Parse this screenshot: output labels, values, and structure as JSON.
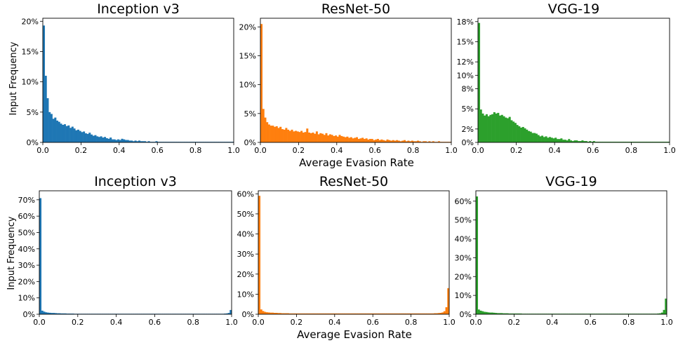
{
  "figure": {
    "shared_xlabel_top": "Average Evasion Rate",
    "shared_xlabel_bottom": "Average Evasion Rate",
    "ylabel_top": "Input Frequency",
    "ylabel_bottom": "Input Frequency"
  },
  "chart_data": [
    {
      "type": "bar",
      "title": "Inception v3",
      "color": "#1f77b4",
      "xlim": [
        0,
        1
      ],
      "ylim": [
        0,
        20.5
      ],
      "xticks": [
        "0.0",
        "0.2",
        "0.4",
        "0.6",
        "0.8",
        "1.0"
      ],
      "yticks": [
        {
          "v": 0,
          "t": "0%"
        },
        {
          "v": 5,
          "t": "5%"
        },
        {
          "v": 10,
          "t": "10%"
        },
        {
          "v": 15,
          "t": "15%"
        },
        {
          "v": 20,
          "t": "20%"
        }
      ],
      "bin_width": 0.01,
      "values": [
        19.3,
        11.0,
        7.3,
        5.0,
        4.7,
        3.9,
        4.1,
        3.6,
        3.4,
        3.1,
        2.9,
        3.0,
        2.7,
        2.8,
        2.4,
        2.6,
        2.3,
        2.0,
        2.1,
        1.9,
        1.7,
        1.8,
        1.5,
        1.4,
        1.6,
        1.3,
        1.1,
        1.2,
        1.0,
        0.9,
        1.0,
        0.8,
        0.9,
        0.7,
        0.6,
        0.8,
        0.5,
        0.5,
        0.4,
        0.5,
        0.4,
        0.6,
        0.5,
        0.4,
        0.4,
        0.3,
        0.3,
        0.2,
        0.3,
        0.2,
        0.3,
        0.2,
        0.2,
        0.2,
        0.1,
        0.2,
        0.1,
        0.1,
        0.1,
        0.2,
        0.1,
        0.1,
        0.1,
        0.1,
        0.1,
        0.1,
        0.1,
        0.1,
        0.1,
        0.1,
        0.1,
        0.1,
        0.1,
        0.1,
        0.1,
        0.1,
        0.1,
        0.1,
        0.1,
        0.1,
        0.1,
        0.1,
        0.1,
        0.1,
        0.1,
        0.1,
        0.1,
        0.1,
        0.1,
        0.1,
        0.1,
        0.1,
        0.1,
        0.1,
        0.1,
        0.1,
        0.1,
        0.1,
        0.1,
        0.1
      ]
    },
    {
      "type": "bar",
      "title": "ResNet-50",
      "color": "#ff7f0e",
      "xlim": [
        0,
        1
      ],
      "ylim": [
        0,
        21.5
      ],
      "xticks": [
        "0.0",
        "0.2",
        "0.4",
        "0.6",
        "0.8",
        "1.0"
      ],
      "yticks": [
        {
          "v": 0,
          "t": "0%"
        },
        {
          "v": 5,
          "t": "5%"
        },
        {
          "v": 10,
          "t": "10%"
        },
        {
          "v": 15,
          "t": "15%"
        },
        {
          "v": 20,
          "t": "20%"
        }
      ],
      "bin_width": 0.01,
      "values": [
        20.5,
        5.8,
        4.3,
        3.5,
        3.1,
        2.9,
        2.9,
        2.7,
        2.8,
        2.5,
        2.7,
        2.3,
        2.2,
        2.5,
        2.2,
        2.0,
        2.2,
        1.9,
        2.0,
        1.9,
        1.8,
        2.0,
        1.7,
        1.8,
        2.4,
        1.7,
        1.6,
        1.7,
        1.5,
        1.9,
        1.4,
        1.6,
        1.5,
        1.3,
        1.6,
        1.2,
        1.4,
        1.3,
        1.1,
        1.2,
        1.0,
        1.3,
        1.1,
        1.0,
        0.9,
        1.0,
        0.8,
        0.9,
        0.7,
        0.8,
        0.9,
        0.6,
        0.7,
        0.8,
        0.6,
        0.7,
        0.5,
        0.6,
        0.6,
        0.4,
        0.5,
        0.6,
        0.4,
        0.5,
        0.4,
        0.3,
        0.5,
        0.4,
        0.3,
        0.4,
        0.3,
        0.4,
        0.3,
        0.2,
        0.3,
        0.4,
        0.2,
        0.3,
        0.2,
        0.3,
        0.2,
        0.2,
        0.3,
        0.2,
        0.1,
        0.2,
        0.2,
        0.1,
        0.2,
        0.1,
        0.2,
        0.1,
        0.1,
        0.2,
        0.1,
        0.1,
        0.1,
        0.1,
        0.1,
        0.1
      ]
    },
    {
      "type": "bar",
      "title": "VGG-19",
      "color": "#2ca02c",
      "xlim": [
        0,
        1
      ],
      "ylim": [
        0,
        18.5
      ],
      "xticks": [
        "0.0",
        "0.2",
        "0.4",
        "0.6",
        "0.8",
        "1.0"
      ],
      "yticks": [
        {
          "v": 0,
          "t": "0%"
        },
        {
          "v": 2,
          "t": "2%"
        },
        {
          "v": 5,
          "t": "5%"
        },
        {
          "v": 8,
          "t": "8%"
        },
        {
          "v": 10,
          "t": "10%"
        },
        {
          "v": 12,
          "t": "12%"
        },
        {
          "v": 15,
          "t": "15%"
        },
        {
          "v": 18,
          "t": "18%"
        }
      ],
      "bin_width": 0.01,
      "values": [
        17.8,
        4.9,
        4.3,
        4.0,
        4.2,
        3.9,
        4.1,
        4.2,
        4.5,
        4.3,
        4.4,
        4.0,
        4.1,
        3.9,
        3.7,
        3.6,
        3.8,
        3.3,
        3.1,
        2.9,
        2.6,
        2.4,
        2.2,
        2.3,
        2.1,
        1.9,
        1.7,
        1.6,
        1.4,
        1.4,
        1.3,
        1.1,
        0.9,
        1.0,
        0.8,
        0.9,
        0.7,
        0.8,
        0.7,
        0.6,
        0.7,
        0.5,
        0.5,
        0.6,
        0.4,
        0.4,
        0.3,
        0.5,
        0.3,
        0.2,
        0.3,
        0.3,
        0.2,
        0.2,
        0.3,
        0.2,
        0.2,
        0.1,
        0.2,
        0.1,
        0.2,
        0.1,
        0.1,
        0.1,
        0.1,
        0.1,
        0.1,
        0.1,
        0.1,
        0.1,
        0.1,
        0.1,
        0.1,
        0.1,
        0.1,
        0.1,
        0.1,
        0.1,
        0.1,
        0.1,
        0.1,
        0.1,
        0.1,
        0.1,
        0.1,
        0.1,
        0.1,
        0.1,
        0.1,
        0.1,
        0.1,
        0.1,
        0.1,
        0.1,
        0.1,
        0.1,
        0.1,
        0.1,
        0.1,
        0.1
      ]
    },
    {
      "type": "bar",
      "title": "Inception v3",
      "color": "#1f77b4",
      "xlim": [
        0,
        1
      ],
      "ylim": [
        0,
        75.5
      ],
      "xticks": [
        "0.0",
        "0.2",
        "0.4",
        "0.6",
        "0.8",
        "1.0"
      ],
      "yticks": [
        {
          "v": 0,
          "t": "0%"
        },
        {
          "v": 10,
          "t": "10%"
        },
        {
          "v": 20,
          "t": "20%"
        },
        {
          "v": 30,
          "t": "30%"
        },
        {
          "v": 40,
          "t": "40%"
        },
        {
          "v": 50,
          "t": "50%"
        },
        {
          "v": 60,
          "t": "60%"
        },
        {
          "v": 70,
          "t": "70%"
        }
      ],
      "bin_width": 0.01,
      "values": [
        71.0,
        2.2,
        1.6,
        1.2,
        1.0,
        0.9,
        0.8,
        0.8,
        0.7,
        0.6,
        0.6,
        0.5,
        0.5,
        0.5,
        0.4,
        0.4,
        0.4,
        0.4,
        0.3,
        0.3,
        0.3,
        0.3,
        0.3,
        0.3,
        0.3,
        0.3,
        0.3,
        0.3,
        0.3,
        0.3,
        0.3,
        0.3,
        0.3,
        0.3,
        0.3,
        0.3,
        0.3,
        0.3,
        0.3,
        0.3,
        0.3,
        0.3,
        0.3,
        0.3,
        0.3,
        0.3,
        0.3,
        0.3,
        0.3,
        0.3,
        0.3,
        0.3,
        0.3,
        0.3,
        0.3,
        0.3,
        0.3,
        0.3,
        0.3,
        0.3,
        0.3,
        0.3,
        0.3,
        0.3,
        0.3,
        0.3,
        0.3,
        0.3,
        0.3,
        0.3,
        0.3,
        0.3,
        0.3,
        0.3,
        0.3,
        0.3,
        0.3,
        0.3,
        0.3,
        0.3,
        0.3,
        0.3,
        0.3,
        0.3,
        0.3,
        0.3,
        0.3,
        0.3,
        0.3,
        0.3,
        0.3,
        0.3,
        0.3,
        0.3,
        0.3,
        0.3,
        0.4,
        0.5,
        0.8,
        2.6
      ]
    },
    {
      "type": "bar",
      "title": "ResNet-50",
      "color": "#ff7f0e",
      "xlim": [
        0,
        1
      ],
      "ylim": [
        0,
        61.5
      ],
      "xticks": [
        "0.0",
        "0.2",
        "0.4",
        "0.6",
        "0.8",
        "1.0"
      ],
      "yticks": [
        {
          "v": 0,
          "t": "0%"
        },
        {
          "v": 10,
          "t": "10%"
        },
        {
          "v": 20,
          "t": "20%"
        },
        {
          "v": 30,
          "t": "30%"
        },
        {
          "v": 40,
          "t": "40%"
        },
        {
          "v": 50,
          "t": "50%"
        },
        {
          "v": 60,
          "t": "60%"
        }
      ],
      "bin_width": 0.01,
      "values": [
        59.0,
        2.4,
        1.6,
        1.2,
        1.0,
        0.9,
        0.8,
        0.8,
        0.7,
        0.7,
        0.6,
        0.6,
        0.5,
        0.5,
        0.5,
        0.5,
        0.4,
        0.4,
        0.4,
        0.4,
        0.4,
        0.4,
        0.4,
        0.4,
        0.4,
        0.4,
        0.4,
        0.4,
        0.4,
        0.4,
        0.4,
        0.4,
        0.4,
        0.4,
        0.4,
        0.4,
        0.4,
        0.4,
        0.4,
        0.4,
        0.4,
        0.4,
        0.4,
        0.4,
        0.4,
        0.4,
        0.4,
        0.4,
        0.4,
        0.4,
        0.4,
        0.4,
        0.4,
        0.4,
        0.4,
        0.4,
        0.4,
        0.4,
        0.4,
        0.4,
        0.4,
        0.4,
        0.4,
        0.4,
        0.4,
        0.4,
        0.4,
        0.4,
        0.4,
        0.4,
        0.4,
        0.4,
        0.4,
        0.4,
        0.4,
        0.4,
        0.4,
        0.4,
        0.4,
        0.4,
        0.4,
        0.4,
        0.4,
        0.4,
        0.4,
        0.4,
        0.4,
        0.4,
        0.4,
        0.4,
        0.4,
        0.4,
        0.5,
        0.5,
        0.6,
        0.7,
        0.9,
        1.5,
        3.5,
        13.0
      ]
    },
    {
      "type": "bar",
      "title": "VGG-19",
      "color": "#2ca02c",
      "xlim": [
        0,
        1
      ],
      "ylim": [
        0,
        65.5
      ],
      "xticks": [
        "0.0",
        "0.2",
        "0.4",
        "0.6",
        "0.8",
        "1.0"
      ],
      "yticks": [
        {
          "v": 0,
          "t": "0%"
        },
        {
          "v": 10,
          "t": "10%"
        },
        {
          "v": 20,
          "t": "20%"
        },
        {
          "v": 30,
          "t": "30%"
        },
        {
          "v": 40,
          "t": "40%"
        },
        {
          "v": 50,
          "t": "50%"
        },
        {
          "v": 60,
          "t": "60%"
        }
      ],
      "bin_width": 0.01,
      "values": [
        62.5,
        2.5,
        1.9,
        1.6,
        1.3,
        1.2,
        1.0,
        0.9,
        0.9,
        0.8,
        0.7,
        0.6,
        0.6,
        0.6,
        0.5,
        0.5,
        0.5,
        0.4,
        0.4,
        0.4,
        0.4,
        0.4,
        0.4,
        0.4,
        0.3,
        0.3,
        0.3,
        0.3,
        0.3,
        0.3,
        0.3,
        0.3,
        0.3,
        0.3,
        0.3,
        0.3,
        0.3,
        0.3,
        0.3,
        0.3,
        0.3,
        0.3,
        0.3,
        0.3,
        0.3,
        0.3,
        0.3,
        0.3,
        0.3,
        0.3,
        0.3,
        0.3,
        0.3,
        0.3,
        0.3,
        0.3,
        0.3,
        0.3,
        0.3,
        0.3,
        0.3,
        0.3,
        0.3,
        0.3,
        0.3,
        0.3,
        0.3,
        0.3,
        0.3,
        0.3,
        0.3,
        0.3,
        0.3,
        0.3,
        0.3,
        0.3,
        0.3,
        0.3,
        0.3,
        0.3,
        0.3,
        0.3,
        0.3,
        0.3,
        0.3,
        0.3,
        0.3,
        0.3,
        0.3,
        0.3,
        0.3,
        0.3,
        0.3,
        0.3,
        0.3,
        0.4,
        0.5,
        0.9,
        2.3,
        8.3
      ]
    }
  ]
}
